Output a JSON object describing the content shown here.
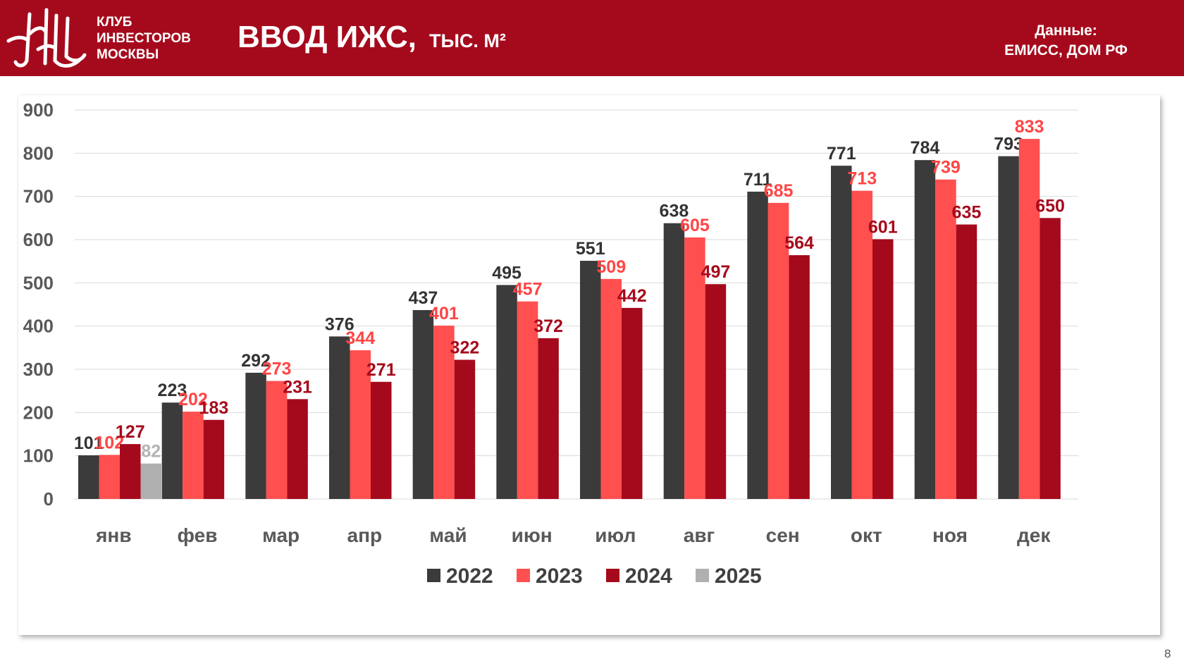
{
  "header": {
    "logo_lines": [
      "КЛУБ",
      "ИНВЕСТОРОВ",
      "МОСКВЫ"
    ],
    "title": "ВВОД ИЖС,",
    "title_unit": "ТЫС. М²",
    "source_lines": [
      "Данные:",
      "ЕМИСС, ДОМ РФ"
    ],
    "colors": {
      "header_bg": "#a50a1c",
      "header_text": "#ffffff"
    }
  },
  "page_number": "8",
  "chart_data": {
    "type": "bar",
    "title": "",
    "xlabel": "",
    "ylabel": "",
    "ylim": [
      0,
      900
    ],
    "yticks": [
      0,
      100,
      200,
      300,
      400,
      500,
      600,
      700,
      800,
      900
    ],
    "grid": true,
    "legend_position": "bottom",
    "categories": [
      "янв",
      "фев",
      "мар",
      "апр",
      "май",
      "июн",
      "июл",
      "авг",
      "сен",
      "окт",
      "ноя",
      "дек"
    ],
    "series": [
      {
        "name": "2022",
        "color": "#3b3b3b",
        "label_color": "#333333",
        "values": [
          101,
          223,
          292,
          376,
          437,
          495,
          551,
          638,
          711,
          771,
          784,
          793
        ]
      },
      {
        "name": "2023",
        "color": "#ff4f4f",
        "label_color": "#ff4545",
        "values": [
          102,
          202,
          273,
          344,
          401,
          457,
          509,
          605,
          685,
          713,
          739,
          833
        ]
      },
      {
        "name": "2024",
        "color": "#a50a1c",
        "label_color": "#a50a1c",
        "values": [
          127,
          183,
          231,
          271,
          322,
          372,
          442,
          497,
          564,
          601,
          635,
          650
        ]
      },
      {
        "name": "2025",
        "color": "#b0b0b0",
        "label_color": "#b4b4b4",
        "values": [
          82,
          null,
          null,
          null,
          null,
          null,
          null,
          null,
          null,
          null,
          null,
          null
        ]
      }
    ]
  }
}
